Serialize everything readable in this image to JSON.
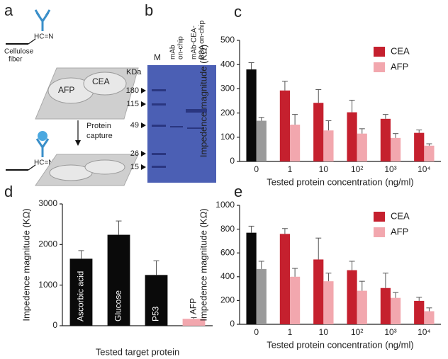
{
  "panels": {
    "a": {
      "label": "a",
      "bond_labels": [
        "HC=N",
        "HC=N"
      ],
      "fiber": [
        "Cellulose",
        "fiber"
      ],
      "zones": [
        "CEA",
        "AFP"
      ],
      "step": [
        "Protein",
        "capture"
      ]
    },
    "b": {
      "label": "b",
      "lanes": [
        [
          "M"
        ],
        [
          "mAb",
          "on-chip"
        ],
        [
          "mAb-CEA-",
          "BSA on-chip"
        ]
      ],
      "unit": "KDa",
      "markers": [
        180,
        115,
        49,
        26,
        15
      ]
    }
  },
  "chart_data": [
    {
      "type": "bar",
      "label": "c",
      "ylabel": "Impedence magnitude (KΩ)",
      "xlabel": "Tested protein concentration (ng/ml)",
      "categories": [
        "0",
        "1",
        "10",
        "10²",
        "10³",
        "10⁴"
      ],
      "series": [
        {
          "name": "CEA",
          "color": "#c5202e",
          "colors": [
            "#0a0a0a",
            "#c5202e",
            "#c5202e",
            "#c5202e",
            "#c5202e",
            "#c5202e"
          ],
          "values": [
            380,
            293,
            242,
            203,
            176,
            118
          ],
          "errors": [
            28,
            38,
            55,
            50,
            18,
            12
          ]
        },
        {
          "name": "AFP",
          "color": "#f2a7ae",
          "colors": [
            "#9a9a9a",
            "#f2a7ae",
            "#f2a7ae",
            "#f2a7ae",
            "#f2a7ae",
            "#f2a7ae"
          ],
          "values": [
            168,
            152,
            128,
            115,
            97,
            65
          ],
          "errors": [
            14,
            42,
            40,
            20,
            18,
            8
          ]
        }
      ],
      "ylim": [
        0,
        500
      ],
      "yticks": [
        0,
        100,
        200,
        300,
        400,
        500
      ],
      "legend": "upper right"
    },
    {
      "type": "bar",
      "label": "d",
      "ylabel": "Impedence magnitude (KΩ)",
      "xlabel": "Tested target protein",
      "categories": [
        "Ascorbic acid",
        "Glucose",
        "P53",
        "AFP"
      ],
      "values": [
        1650,
        2240,
        1250,
        170
      ],
      "errors": [
        200,
        340,
        350,
        30
      ],
      "colors": [
        "#0a0a0a",
        "#0a0a0a",
        "#0a0a0a",
        "#f2a7ae"
      ],
      "ylim": [
        0,
        3000
      ],
      "yticks": [
        0,
        1000,
        2000,
        3000
      ]
    },
    {
      "type": "bar",
      "label": "e",
      "ylabel": "Impedence magnitude (KΩ)",
      "xlabel": "Tested protein concentration (ng/ml)",
      "categories": [
        "0",
        "1",
        "10",
        "10²",
        "10³",
        "10⁴"
      ],
      "series": [
        {
          "name": "CEA",
          "color": "#c5202e",
          "colors": [
            "#0a0a0a",
            "#c5202e",
            "#c5202e",
            "#c5202e",
            "#c5202e",
            "#c5202e"
          ],
          "values": [
            770,
            760,
            545,
            455,
            305,
            197
          ],
          "errors": [
            55,
            45,
            180,
            75,
            125,
            30
          ]
        },
        {
          "name": "AFP",
          "color": "#f2a7ae",
          "colors": [
            "#9a9a9a",
            "#f2a7ae",
            "#f2a7ae",
            "#f2a7ae",
            "#f2a7ae",
            "#f2a7ae"
          ],
          "values": [
            465,
            400,
            362,
            282,
            222,
            110
          ],
          "errors": [
            65,
            70,
            68,
            80,
            45,
            28
          ]
        }
      ],
      "ylim": [
        0,
        1000
      ],
      "yticks": [
        0,
        200,
        400,
        600,
        800,
        1000
      ],
      "legend": "upper right"
    }
  ]
}
